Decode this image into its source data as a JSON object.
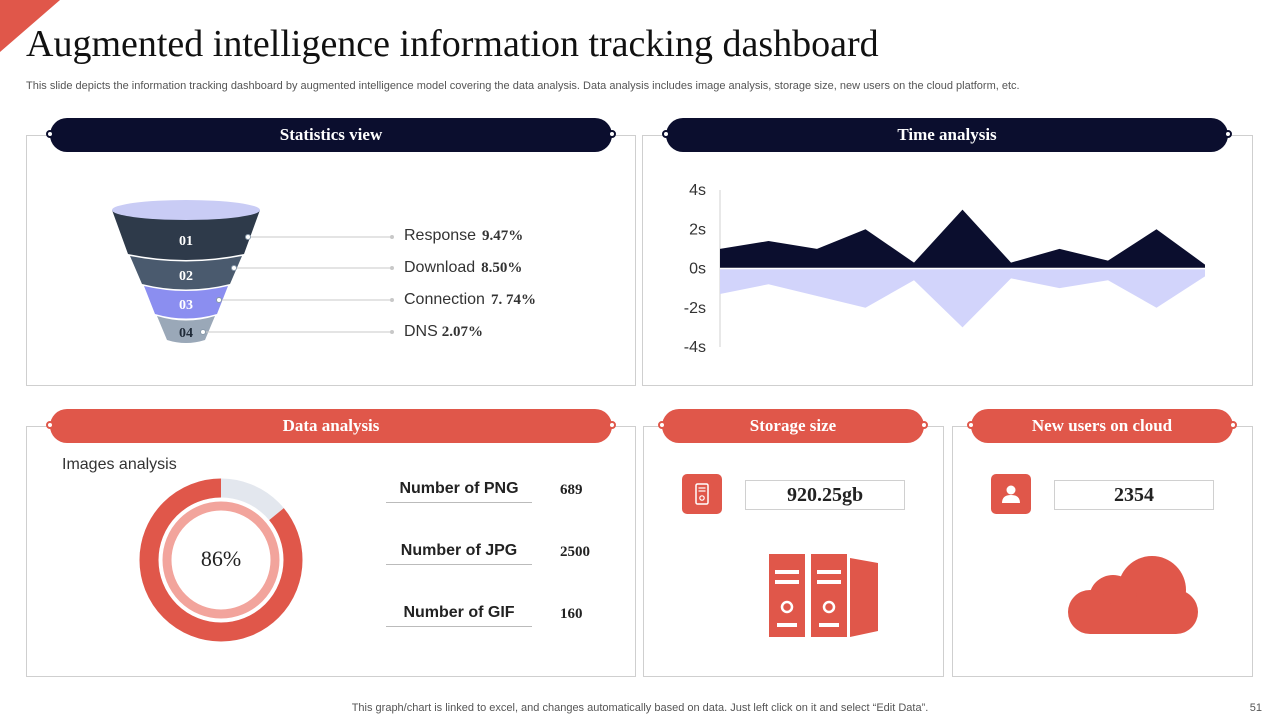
{
  "title": "Augmented intelligence information tracking dashboard",
  "subtitle": "This slide depicts the information tracking dashboard by augmented intelligence model covering the data analysis. Data analysis includes image analysis, storage size, new users on the cloud platform, etc.",
  "statistics": {
    "header": "Statistics view",
    "funnel": [
      {
        "step": "01",
        "label": "Response",
        "value": "9.47%"
      },
      {
        "step": "02",
        "label": "Download",
        "value": "8.50%"
      },
      {
        "step": "03",
        "label": "Connection",
        "value": "7. 74%"
      },
      {
        "step": "04",
        "label": "DNS",
        "value": "2.07%"
      }
    ],
    "colors": {
      "navy": "#0b0e2e",
      "slate": "#2e3a4a",
      "steel": "#4a5a6e",
      "periwinkle": "#8b8ef0",
      "gray_blue": "#9aa8b8"
    }
  },
  "time_analysis": {
    "header": "Time analysis",
    "y_ticks": [
      "4s",
      "2s",
      "0s",
      "-2s",
      "-4s"
    ]
  },
  "chart_data": {
    "type": "area",
    "ylim": [
      -4,
      4
    ],
    "y_ticks": [
      "4s",
      "2s",
      "0s",
      "-2s",
      "-4s"
    ],
    "series": [
      {
        "values": [
          1.0,
          1.4,
          1.0,
          2.0,
          0.3,
          3.0,
          0.3,
          1.0,
          0.4,
          2.0,
          0.2
        ],
        "color": "#0b0e2e"
      },
      {
        "values": [
          -1.3,
          -0.8,
          -1.4,
          -2.0,
          -0.6,
          -3.0,
          -0.5,
          -1.0,
          -0.6,
          -2.0,
          -0.4
        ],
        "color": "#d2d4fb"
      }
    ]
  },
  "data_analysis": {
    "header": "Data analysis",
    "images_label": "Images analysis",
    "percent": "86%",
    "percent_value": 0.86,
    "metrics": [
      {
        "label": "Number of PNG",
        "value": "689"
      },
      {
        "label": "Number of JPG",
        "value": "2500"
      },
      {
        "label": "Number of GIF",
        "value": "160"
      }
    ]
  },
  "storage": {
    "header": "Storage size",
    "value": "920.25gb",
    "icon": "hard-drive-icon",
    "illustration": "server-icon"
  },
  "new_users": {
    "header": "New users on cloud",
    "value": "2354",
    "icon": "user-icon",
    "illustration": "cloud-icon"
  },
  "footer": "This graph/chart is linked to excel,  and changes automatically based on data. Just left click on it and select “Edit Data”.",
  "page_number": "51",
  "accent": "#e0574a"
}
